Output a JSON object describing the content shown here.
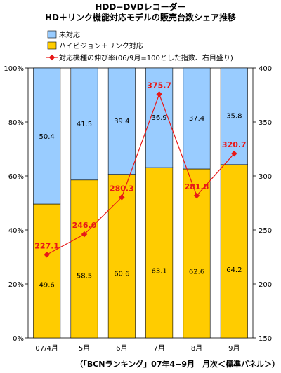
{
  "chart_data": {
    "type": "bar",
    "title": "HDD−DVDレコーダー",
    "subtitle": "HD＋リンク機能対応モデルの販売台数シェア推移",
    "categories": [
      "07/4月",
      "5月",
      "6月",
      "7月",
      "8月",
      "9月"
    ],
    "series": [
      {
        "name": "未対応",
        "values": [
          50.4,
          41.5,
          39.4,
          36.9,
          37.4,
          35.8
        ],
        "color": "#99ccff"
      },
      {
        "name": "ハイビジョン＋リンク対応",
        "values": [
          49.6,
          58.5,
          60.6,
          63.1,
          62.6,
          64.2
        ],
        "color": "#ffcc00"
      }
    ],
    "line_series": {
      "name": "対応機種の伸び率(06/9月=100とした指数、右目盛り)",
      "values": [
        227.1,
        246.0,
        280.3,
        375.7,
        281.8,
        320.7
      ],
      "color": "#e81818"
    },
    "ylim": [
      0,
      100
    ],
    "y_ticks": [
      "0%",
      "20%",
      "40%",
      "60%",
      "80%",
      "100%"
    ],
    "y2lim": [
      150,
      400
    ],
    "y2_ticks": [
      "150",
      "200",
      "250",
      "300",
      "350",
      "400"
    ],
    "source": "（「BCNランキング」07年4−9月　月次＜標準パネル＞）"
  }
}
